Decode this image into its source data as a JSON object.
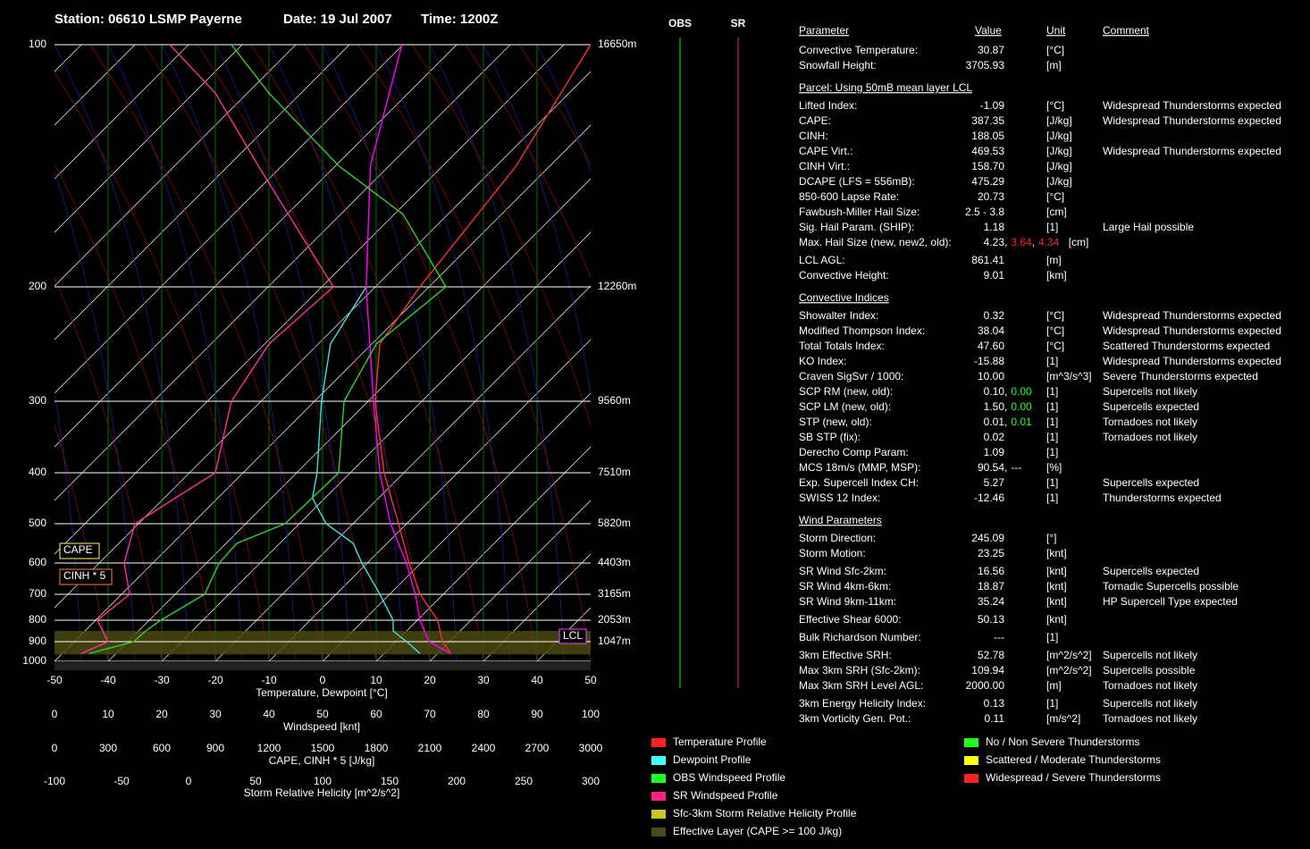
{
  "header": {
    "station": "Station: 06610 LSMP Payerne",
    "date": "Date: 19 Jul 2007",
    "time": "Time: 1200Z"
  },
  "chart_data": {
    "type": "skewt",
    "ylim": [
      1000,
      100
    ],
    "yticks": [
      100,
      200,
      300,
      400,
      500,
      600,
      700,
      800,
      900,
      1000
    ],
    "height_ticks": [
      {
        "value": 100,
        "label": "16650m"
      },
      {
        "value": 200,
        "label": "12260m"
      },
      {
        "value": 300,
        "label": "9560m"
      },
      {
        "value": 400,
        "label": "7510m"
      },
      {
        "value": 500,
        "label": "5820m"
      },
      {
        "value": 600,
        "label": "4403m"
      },
      {
        "value": 700,
        "label": "3165m"
      },
      {
        "value": 800,
        "label": "2053m"
      },
      {
        "value": 900,
        "label": "1047m"
      }
    ],
    "xlim": [
      -50,
      50
    ],
    "xticks": [
      -50,
      -40,
      -30,
      -20,
      -10,
      0,
      10,
      20,
      30,
      40,
      50
    ],
    "xlabel": "Temperature, Dewpoint [°C]",
    "x2lim": [
      0,
      100
    ],
    "x2ticks": [
      0,
      10,
      20,
      30,
      40,
      50,
      60,
      70,
      80,
      90,
      100
    ],
    "x2label": "Windspeed [knt]",
    "x3lim": [
      0,
      3000
    ],
    "x3ticks": [
      0,
      300,
      600,
      900,
      1200,
      1500,
      1800,
      2100,
      2400,
      2700,
      3000
    ],
    "x3label": "CAPE, CINH * 5 [J/kg]",
    "x4lim": [
      -100,
      300
    ],
    "x4ticks": [
      -100,
      -50,
      0,
      50,
      100,
      150,
      200,
      250,
      300
    ],
    "x4label": "Storm Relative Helicity [m^2/s^2]",
    "series": [
      {
        "color": "#ff3030",
        "axis": "x",
        "pressure": [
          960,
          900,
          800,
          700,
          600,
          500,
          400,
          300,
          250,
          200,
          150,
          100
        ],
        "values": [
          22.5,
          18.7,
          13.8,
          5.7,
          -2.2,
          -11.5,
          -23.7,
          -38.7,
          -48.5,
          -51.7,
          -56.3,
          -65
        ]
      },
      {
        "color": "#40e0e0",
        "axis": "x",
        "pressure": [
          960,
          900,
          850,
          800,
          700,
          600,
          550,
          500,
          450,
          400,
          300,
          250,
          200
        ],
        "values": [
          16.7,
          12,
          7.5,
          5.5,
          -1.8,
          -11,
          -16.3,
          -25,
          -32.3,
          -36.2,
          -48.7,
          -57.7,
          -61.7
        ]
      },
      {
        "color": "#ff00ff",
        "axis": "x",
        "pressure": [
          960,
          900,
          800,
          700,
          600,
          500,
          400,
          300,
          200,
          150,
          100
        ],
        "values": [
          22.5,
          16.2,
          10.5,
          4.8,
          -2.7,
          -13,
          -24.5,
          -39,
          -61.7,
          -83.5,
          -100.2
        ]
      },
      {
        "color": "#30d030",
        "axis": "x2",
        "pressure": [
          960,
          900,
          850,
          800,
          700,
          600,
          550,
          500,
          400,
          300,
          250,
          200,
          170,
          150,
          120,
          100
        ],
        "values": [
          6.5,
          14.8,
          17,
          19.8,
          28,
          30.7,
          34,
          43,
          53,
          54,
          60,
          73,
          65,
          53,
          40,
          33
        ]
      },
      {
        "color": "#ff3090",
        "axis": "x2",
        "pressure": [
          960,
          900,
          800,
          700,
          600,
          500,
          400,
          300,
          250,
          200,
          150,
          120,
          100
        ],
        "values": [
          5,
          10,
          8,
          14,
          13,
          15,
          30,
          33,
          40,
          52,
          38,
          30,
          21.5
        ]
      }
    ],
    "effective_layer": {
      "pressure": [
        965,
        850
      ],
      "color": "#4a4a10"
    },
    "lcl": {
      "label": "LCL",
      "pressure": 875,
      "color": "#ff40ff"
    },
    "annotations": [
      {
        "text": "CAPE",
        "color": "#ffff60"
      },
      {
        "text": "CINH * 5",
        "color": "#ff8040"
      }
    ],
    "wind_panels": [
      {
        "label": "OBS",
        "color": "#00ff00"
      },
      {
        "label": "SR",
        "color": "#ff2080"
      }
    ],
    "legend": [
      {
        "label": "Temperature Profile",
        "color": "#ff2020"
      },
      {
        "label": "Dewpoint Profile",
        "color": "#40ffff"
      },
      {
        "label": "OBS Windspeed Profile",
        "color": "#20ff20"
      },
      {
        "label": "SR Windspeed Profile",
        "color": "#ff2080"
      },
      {
        "label": "Sfc-3km Storm Relative Helicity Profile",
        "color": "#c8c820"
      },
      {
        "label": "Effective Layer (CAPE >= 100 J/kg)",
        "color": "#4a4a20"
      }
    ],
    "threat_legend": [
      {
        "label": "No / Non Severe Thunderstorms",
        "color": "#20ff20"
      },
      {
        "label": "Scattered / Moderate Thunderstorms",
        "color": "#ffff00"
      },
      {
        "label": "Widespread / Severe Thunderstorms",
        "color": "#ff2020"
      }
    ]
  },
  "table": {
    "header": [
      "Parameter",
      "Value",
      "Unit",
      "Comment"
    ],
    "sections": [
      {
        "rows": [
          {
            "parameter": "Convective Temperature:",
            "value": [
              {
                "text": "30.87",
                "color": "#ff2020"
              }
            ],
            "unit": "[°C]"
          },
          {
            "parameter": "Snowfall Height:",
            "value": [
              {
                "text": "3705.93",
                "color": "#ffffff"
              }
            ],
            "unit": "[m]"
          }
        ]
      },
      {
        "title": "Parcel: Using 50mB mean layer LCL",
        "rows": [
          {
            "parameter": "Lifted Index:",
            "value": [
              {
                "text": "-1.09",
                "color": "#ff2020"
              }
            ],
            "unit": "[°C]",
            "comment": "Widespread Thunderstorms expected"
          },
          {
            "parameter": "CAPE:",
            "value": [
              {
                "text": "387.35",
                "color": "#ff2020"
              }
            ],
            "unit": "[J/kg]",
            "comment": "Widespread Thunderstorms expected"
          },
          {
            "parameter": "CINH:",
            "value": [
              {
                "text": "188.05",
                "color": "#20ff20"
              }
            ],
            "unit": "[J/kg]"
          },
          {
            "parameter": "CAPE Virt.:",
            "value": [
              {
                "text": "469.53",
                "color": "#ff2020"
              }
            ],
            "unit": "[J/kg]",
            "comment": "Widespread Thunderstorms expected"
          },
          {
            "parameter": "CINH Virt.:",
            "value": [
              {
                "text": "158.70",
                "color": "#ffff00"
              }
            ],
            "unit": "[J/kg]"
          },
          {
            "parameter": "DCAPE (LFS = 556mB):",
            "value": [
              {
                "text": "475.29",
                "color": "#ffff00"
              }
            ],
            "unit": "[J/kg]"
          },
          {
            "parameter": "850-600 Lapse Rate:",
            "value": [
              {
                "text": "20.73",
                "color": "#ff2020"
              }
            ],
            "unit": "[°C]"
          },
          {
            "parameter": "Fawbush-Miller Hail Size:",
            "value": [
              {
                "text": "2.5 - 3.8",
                "color": "#ff2020"
              }
            ],
            "unit": "[cm]"
          },
          {
            "parameter": "Sig. Hail Param. (SHIP):",
            "value": [
              {
                "text": "1.18",
                "color": "#ff2020"
              }
            ],
            "unit": "[1]",
            "comment": "Large Hail possible"
          },
          {
            "parameter": "Max. Hail Size (new, new2, old):",
            "value": [
              {
                "text": "4.23",
                "color": "#ff2020"
              },
              {
                "text": ",",
                "color": "#ffffff"
              },
              {
                "text": "3.64",
                "color": "#ff2020"
              },
              {
                "text": ",",
                "color": "#ffffff"
              },
              {
                "text": "4.34",
                "color": "#ff2020"
              }
            ],
            "unit": "[cm]"
          },
          {
            "parameter": "LCL AGL:",
            "value": [
              {
                "text": "861.41",
                "color": "#ff2020"
              }
            ],
            "unit": "[m]"
          },
          {
            "parameter": "Convective Height:",
            "value": [
              {
                "text": "9.01",
                "color": "#ff2020"
              }
            ],
            "unit": "[km]"
          }
        ]
      },
      {
        "title": "Convective Indices",
        "rows": [
          {
            "parameter": "Showalter Index:",
            "value": [
              {
                "text": "0.32",
                "color": "#ff2020"
              }
            ],
            "unit": "[°C]",
            "comment": "Widespread Thunderstorms expected"
          },
          {
            "parameter": "Modified Thompson Index:",
            "value": [
              {
                "text": "38.04",
                "color": "#ff2020"
              }
            ],
            "unit": "[°C]",
            "comment": "Widespread Thunderstorms expected"
          },
          {
            "parameter": "Total Totals Index:",
            "value": [
              {
                "text": "47.60",
                "color": "#ffff00"
              }
            ],
            "unit": "[°C]",
            "comment": "Scattered Thunderstorms expected"
          },
          {
            "parameter": "KO Index:",
            "value": [
              {
                "text": "-15.88",
                "color": "#ff2020"
              }
            ],
            "unit": "[1]",
            "comment": "Widespread Thunderstorms expected"
          },
          {
            "parameter": "Craven SigSvr / 1000:",
            "value": [
              {
                "text": "10.00",
                "color": "#ffff00"
              }
            ],
            "unit": "[m^3/s^3]",
            "comment": "Severe Thunderstorms expected"
          },
          {
            "parameter": "SCP RM (new, old):",
            "value": [
              {
                "text": "0.10",
                "color": "#20ff20"
              },
              {
                "text": ",",
                "color": "#ffffff"
              },
              {
                "text": "0.00",
                "color": "#20ff20"
              }
            ],
            "unit": "[1]",
            "comment": "Supercells not likely"
          },
          {
            "parameter": "SCP LM (new, old):",
            "value": [
              {
                "text": "1.50",
                "color": "#ff2020"
              },
              {
                "text": ",",
                "color": "#ffffff"
              },
              {
                "text": "0.00",
                "color": "#20ff20"
              }
            ],
            "unit": "[1]",
            "comment": "Supercells expected"
          },
          {
            "parameter": "STP (new, old):",
            "value": [
              {
                "text": "0.01",
                "color": "#20ff20"
              },
              {
                "text": ",",
                "color": "#ffffff"
              },
              {
                "text": "0.01",
                "color": "#20ff20"
              }
            ],
            "unit": "[1]",
            "comment": "Tornadoes not likely"
          },
          {
            "parameter": "SB STP (fix):",
            "value": [
              {
                "text": "0.02",
                "color": "#20ff20"
              }
            ],
            "unit": "[1]",
            "comment": "Tornadoes not likely"
          },
          {
            "parameter": "Derecho Comp Param:",
            "value": [
              {
                "text": "1.09",
                "color": "#ff2020"
              }
            ],
            "unit": "[1]"
          },
          {
            "parameter": "MCS 18m/s (MMP, MSP):",
            "value": [
              {
                "text": "90.54",
                "color": "#ff2020"
              },
              {
                "text": ",",
                "color": "#ffffff"
              },
              {
                "text": "---",
                "color": "#ffffff"
              }
            ],
            "unit": "[%]"
          },
          {
            "parameter": "Exp. Supercell Index CH:",
            "value": [
              {
                "text": "5.27",
                "color": "#ff2020"
              }
            ],
            "unit": "[1]",
            "comment": "Supercells expected"
          },
          {
            "parameter": "SWISS 12 Index:",
            "value": [
              {
                "text": "-12.46",
                "color": "#ff2020"
              }
            ],
            "unit": "[1]",
            "comment": "Thunderstorms expected"
          }
        ]
      },
      {
        "title": "Wind Parameters",
        "rows": [
          {
            "parameter": "Storm Direction:",
            "value": [
              {
                "text": "245.09",
                "color": "#ffffff"
              }
            ],
            "unit": "[°]"
          },
          {
            "parameter": "Storm Motion:",
            "value": [
              {
                "text": "23.25",
                "color": "#ffffff"
              }
            ],
            "unit": "[knt]"
          },
          {
            "parameter": "SR Wind Sfc-2km:",
            "value": [
              {
                "text": "16.56",
                "color": "#ff2020"
              }
            ],
            "unit": "[knt]",
            "comment": "Supercells expected"
          },
          {
            "parameter": "SR Wind 4km-6km:",
            "value": [
              {
                "text": "18.87",
                "color": "#ff2020"
              }
            ],
            "unit": "[knt]",
            "comment": "Tornadic Supercells possible"
          },
          {
            "parameter": "SR Wind 9km-11km:",
            "value": [
              {
                "text": "35.24",
                "color": "#ff2020"
              }
            ],
            "unit": "[knt]",
            "comment": "HP Supercell Type expected"
          },
          {
            "parameter": "Effective Shear 6000:",
            "value": [
              {
                "text": "50.13",
                "color": "#ff2020"
              }
            ],
            "unit": "[knt]"
          },
          {
            "parameter": "Bulk Richardson Number:",
            "value": [
              {
                "text": "---",
                "color": "#ffffff"
              }
            ],
            "unit": "[1]"
          },
          {
            "parameter": "3km Effective SRH:",
            "value": [
              {
                "text": "52.78",
                "color": "#20ff20"
              }
            ],
            "unit": "[m^2/s^2]",
            "comment": "Supercells not likely"
          },
          {
            "parameter": "Max 3km SRH (Sfc-2km):",
            "value": [
              {
                "text": "109.94",
                "color": "#ff2020"
              }
            ],
            "unit": "[m^2/s^2]",
            "comment": "Supercells possible"
          },
          {
            "parameter": "Max 3km SRH Level AGL:",
            "value": [
              {
                "text": "2000.00",
                "color": "#20ff20"
              }
            ],
            "unit": "[m]",
            "comment": "Tornadoes not likely"
          },
          {
            "parameter": "3km Energy Helicity Index:",
            "value": [
              {
                "text": "0.13",
                "color": "#20ff20"
              }
            ],
            "unit": "[1]",
            "comment": "Supercells not likely"
          },
          {
            "parameter": "3km Vorticity Gen. Pot.:",
            "value": [
              {
                "text": "0.11",
                "color": "#20ff20"
              }
            ],
            "unit": "[m/s^2]",
            "comment": "Tornadoes not likely"
          }
        ]
      }
    ]
  }
}
